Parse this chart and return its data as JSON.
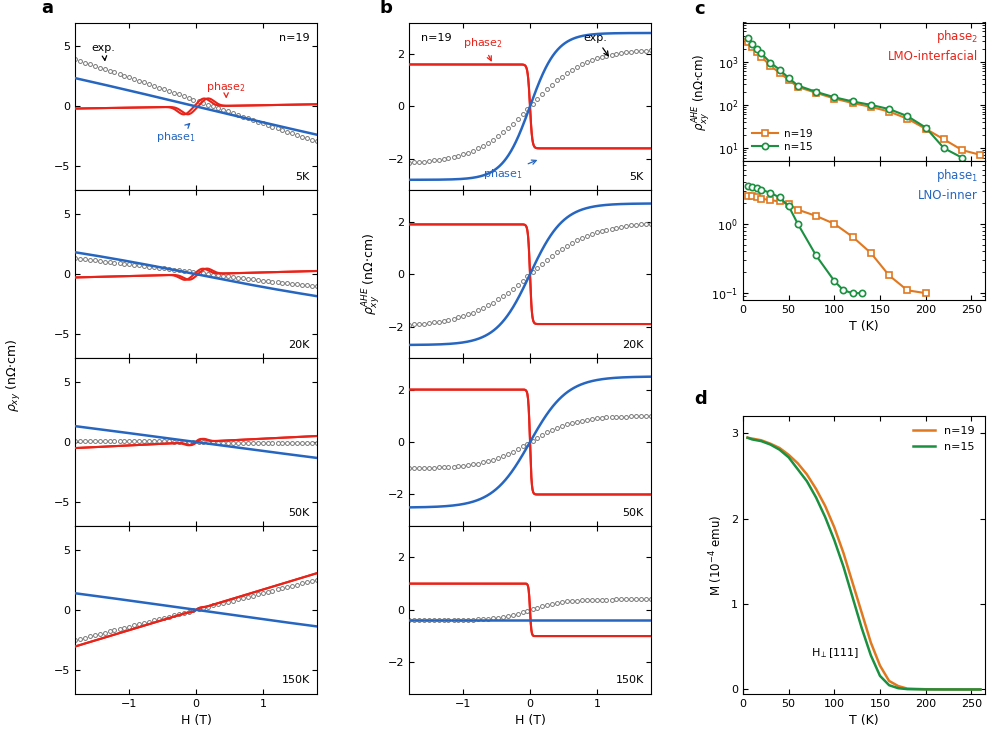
{
  "colors": {
    "phase2": "#e8241a",
    "phase1": "#2666c0",
    "orange": "#e07820",
    "green": "#1a9040"
  },
  "panel_c_phase2_n19_T": [
    5,
    10,
    15,
    20,
    30,
    40,
    50,
    60,
    80,
    100,
    120,
    140,
    160,
    180,
    200,
    220,
    240,
    260
  ],
  "panel_c_phase2_n19_rho": [
    2800,
    2200,
    1700,
    1300,
    800,
    550,
    380,
    260,
    190,
    140,
    110,
    90,
    70,
    48,
    28,
    16,
    9,
    7
  ],
  "panel_c_phase2_n15_T": [
    5,
    10,
    15,
    20,
    30,
    40,
    50,
    60,
    80,
    100,
    120,
    140,
    160,
    180,
    200,
    220,
    240
  ],
  "panel_c_phase2_n15_rho": [
    3500,
    2600,
    2000,
    1550,
    950,
    650,
    420,
    280,
    200,
    150,
    120,
    100,
    80,
    55,
    30,
    10,
    6
  ],
  "panel_c_phase1_n19_T": [
    5,
    10,
    15,
    20,
    30,
    40,
    50,
    60,
    80,
    100,
    120,
    140,
    160,
    180,
    200
  ],
  "panel_c_phase1_n19_rho": [
    2.5,
    2.5,
    2.4,
    2.3,
    2.2,
    2.1,
    1.9,
    1.6,
    1.3,
    1.0,
    0.65,
    0.38,
    0.18,
    0.11,
    0.1
  ],
  "panel_c_phase1_n15_T": [
    5,
    10,
    15,
    20,
    30,
    40,
    50,
    60,
    80,
    100,
    110,
    120,
    130
  ],
  "panel_c_phase1_n15_rho": [
    3.5,
    3.4,
    3.3,
    3.1,
    2.8,
    2.4,
    1.8,
    1.0,
    0.35,
    0.15,
    0.11,
    0.1,
    0.1
  ],
  "panel_d_n19_T": [
    5,
    10,
    20,
    30,
    40,
    50,
    60,
    70,
    80,
    90,
    100,
    110,
    120,
    130,
    140,
    150,
    160,
    170,
    180,
    200,
    220,
    240,
    260
  ],
  "panel_d_n19_M": [
    2.95,
    2.94,
    2.92,
    2.88,
    2.83,
    2.75,
    2.65,
    2.52,
    2.35,
    2.15,
    1.9,
    1.6,
    1.25,
    0.9,
    0.55,
    0.28,
    0.1,
    0.04,
    0.01,
    0.003,
    0.001,
    0.0005,
    0.0002
  ],
  "panel_d_n15_T": [
    5,
    10,
    20,
    30,
    40,
    50,
    60,
    70,
    80,
    90,
    100,
    110,
    120,
    130,
    140,
    150,
    160,
    170,
    180,
    200,
    220,
    240,
    260
  ],
  "panel_d_n15_M": [
    2.95,
    2.93,
    2.91,
    2.87,
    2.81,
    2.72,
    2.58,
    2.44,
    2.25,
    2.02,
    1.75,
    1.44,
    1.08,
    0.72,
    0.4,
    0.16,
    0.05,
    0.015,
    0.004,
    0.001,
    0.0004,
    0.0002,
    0.0001
  ]
}
